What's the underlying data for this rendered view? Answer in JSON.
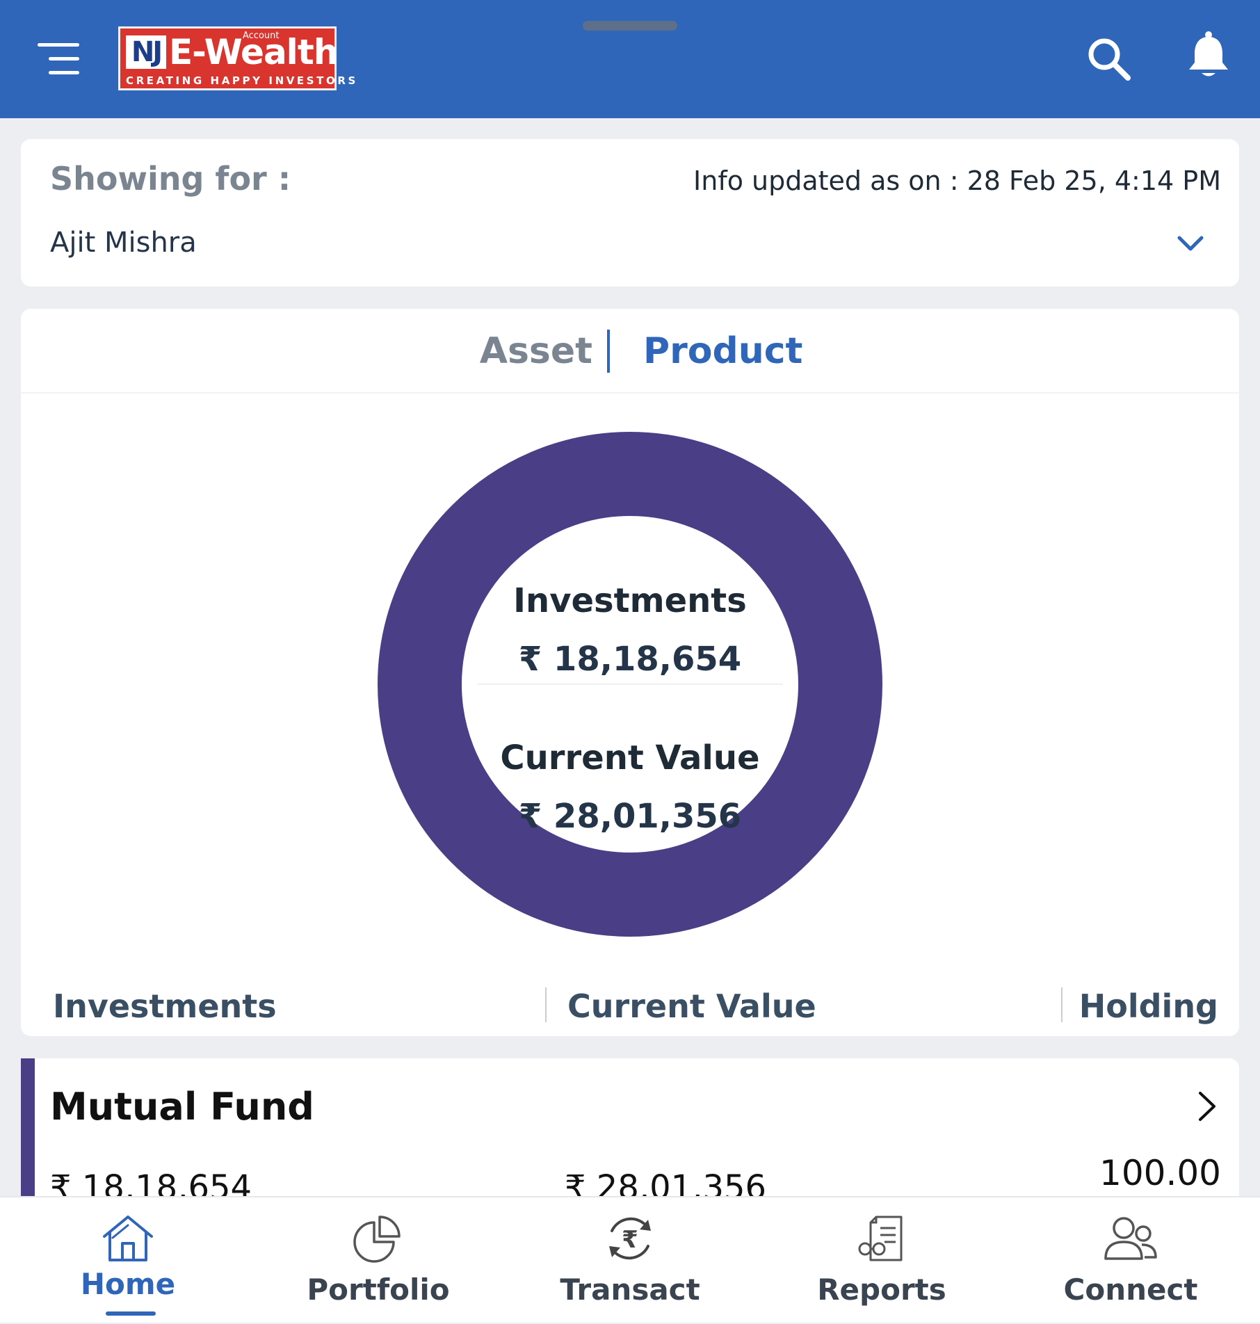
{
  "header": {
    "logo": {
      "nj_mark": "NJ",
      "brand_text": "E-Wealth",
      "account_text": "Account",
      "tagline": "CREATING HAPPY INVESTORS"
    },
    "icons": {
      "menu": "hamburger-menu-icon",
      "search": "search-icon",
      "notifications": "bell-icon"
    }
  },
  "showing": {
    "label": "Showing for :",
    "info_updated": "Info updated as on : 28 Feb 25, 4:14 PM",
    "selected_person": "Ajit Mishra"
  },
  "tabs": {
    "asset": "Asset",
    "product": "Product",
    "active": "Product"
  },
  "chart_data": {
    "type": "pie",
    "categories": [
      "Mutual Fund"
    ],
    "values": [
      100.0
    ],
    "colors": [
      "#4a3f87"
    ],
    "center": {
      "investments_label": "Investments",
      "investments_value": "₹ 18,18,654",
      "current_value_label": "Current Value",
      "current_value_value": "₹ 28,01,356"
    }
  },
  "legend": {
    "investments": "Investments",
    "current_value": "Current Value",
    "holding": "Holding"
  },
  "products": [
    {
      "name": "Mutual Fund",
      "investments": "₹ 18,18,654",
      "current_value": "₹ 28,01,356",
      "holding": "100.00",
      "color": "#4a3f87"
    }
  ],
  "nav": {
    "items": [
      {
        "label": "Home",
        "icon": "home-icon",
        "active": true
      },
      {
        "label": "Portfolio",
        "icon": "pie-chart-icon",
        "active": false
      },
      {
        "label": "Transact",
        "icon": "rupee-exchange-icon",
        "active": false
      },
      {
        "label": "Reports",
        "icon": "report-document-icon",
        "active": false
      },
      {
        "label": "Connect",
        "icon": "people-icon",
        "active": false
      }
    ]
  },
  "colors": {
    "primary": "#2f66b9",
    "logo_red": "#d9342d",
    "donut": "#4a3f87",
    "background": "#eceef2"
  }
}
